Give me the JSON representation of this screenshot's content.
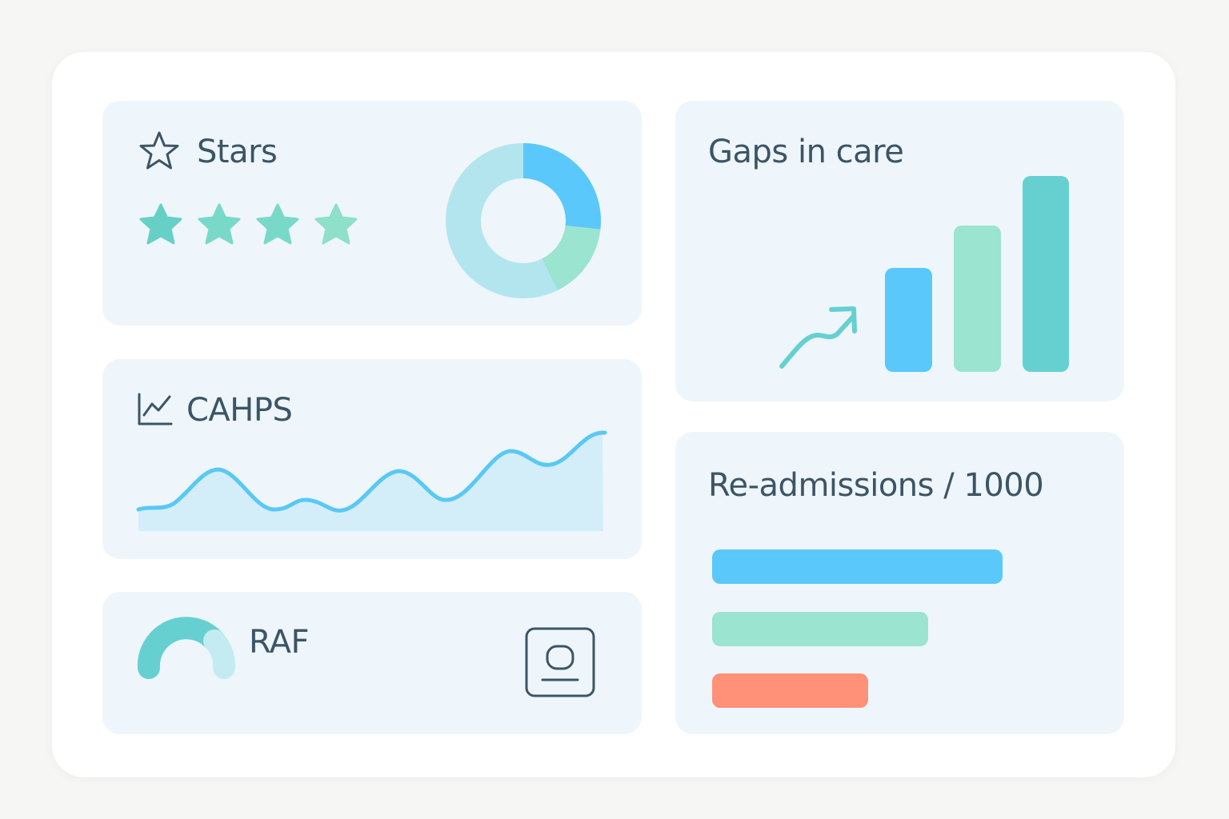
{
  "colors": {
    "page_bg": "#f6f6f5",
    "board_bg": "#ffffff",
    "card_bg": "#eef6fb",
    "text": "#3c5566",
    "teal": "#66d0d1",
    "green": "#9be4cf",
    "blue": "#5ac8fa",
    "light_blue": "#b3e5ef",
    "coral": "#ff9178"
  },
  "stars": {
    "title": "Stars",
    "icon": "star-outline-icon",
    "star_rating": 4
  },
  "cahps": {
    "title": "CAHPS",
    "icon": "line-chart-icon"
  },
  "raf": {
    "title": "RAF",
    "icon": "gauge-icon",
    "badge_icon": "id-card-icon"
  },
  "gaps": {
    "title": "Gaps in care",
    "trend_icon": "trend-up-arrow-icon"
  },
  "readmissions": {
    "title": "Re-admissions / 1000"
  }
}
